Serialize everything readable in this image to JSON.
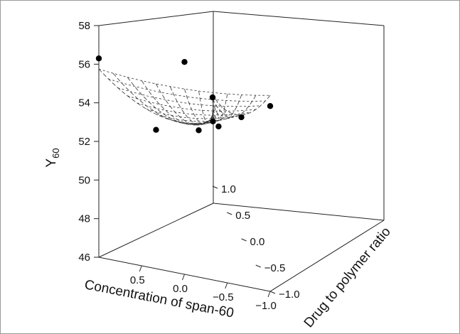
{
  "chart_data": {
    "type": "surface3d",
    "z_axis": {
      "label_main": "Y",
      "label_sub": "60",
      "ticks": [
        "58",
        "56",
        "54",
        "52",
        "50",
        "48",
        "46"
      ],
      "range": [
        46,
        58
      ]
    },
    "x_axis": {
      "label": "Concentration of span-60",
      "ticks": [
        "0.5",
        "0.0",
        "−0.5",
        "−1.0"
      ],
      "range": [
        1.0,
        -1.0
      ]
    },
    "y_axis": {
      "label": "Drug to polymer ratio",
      "ticks": [
        "−1.0",
        "−0.5",
        "0.0",
        "0.5",
        "1.0"
      ],
      "range": [
        -1.0,
        1.0
      ]
    },
    "points": [
      {
        "x": 1.0,
        "y": -1.0,
        "z": 56.3
      },
      {
        "x": 0.0,
        "y": -1.0,
        "z": 57.0
      },
      {
        "x": 1.0,
        "y": 0.0,
        "z": 51.2
      },
      {
        "x": 0.0,
        "y": 0.0,
        "z": 51.4
      },
      {
        "x": -1.0,
        "y": -1.0,
        "z": 55.6
      },
      {
        "x": 0.0,
        "y": 1.0,
        "z": 49.8
      },
      {
        "x": -1.0,
        "y": 0.0,
        "z": 52.3
      },
      {
        "x": -1.0,
        "y": 1.0,
        "z": 50.6
      },
      {
        "x": -0.6,
        "y": 0.5,
        "z": 50.5
      }
    ],
    "grid": true
  }
}
